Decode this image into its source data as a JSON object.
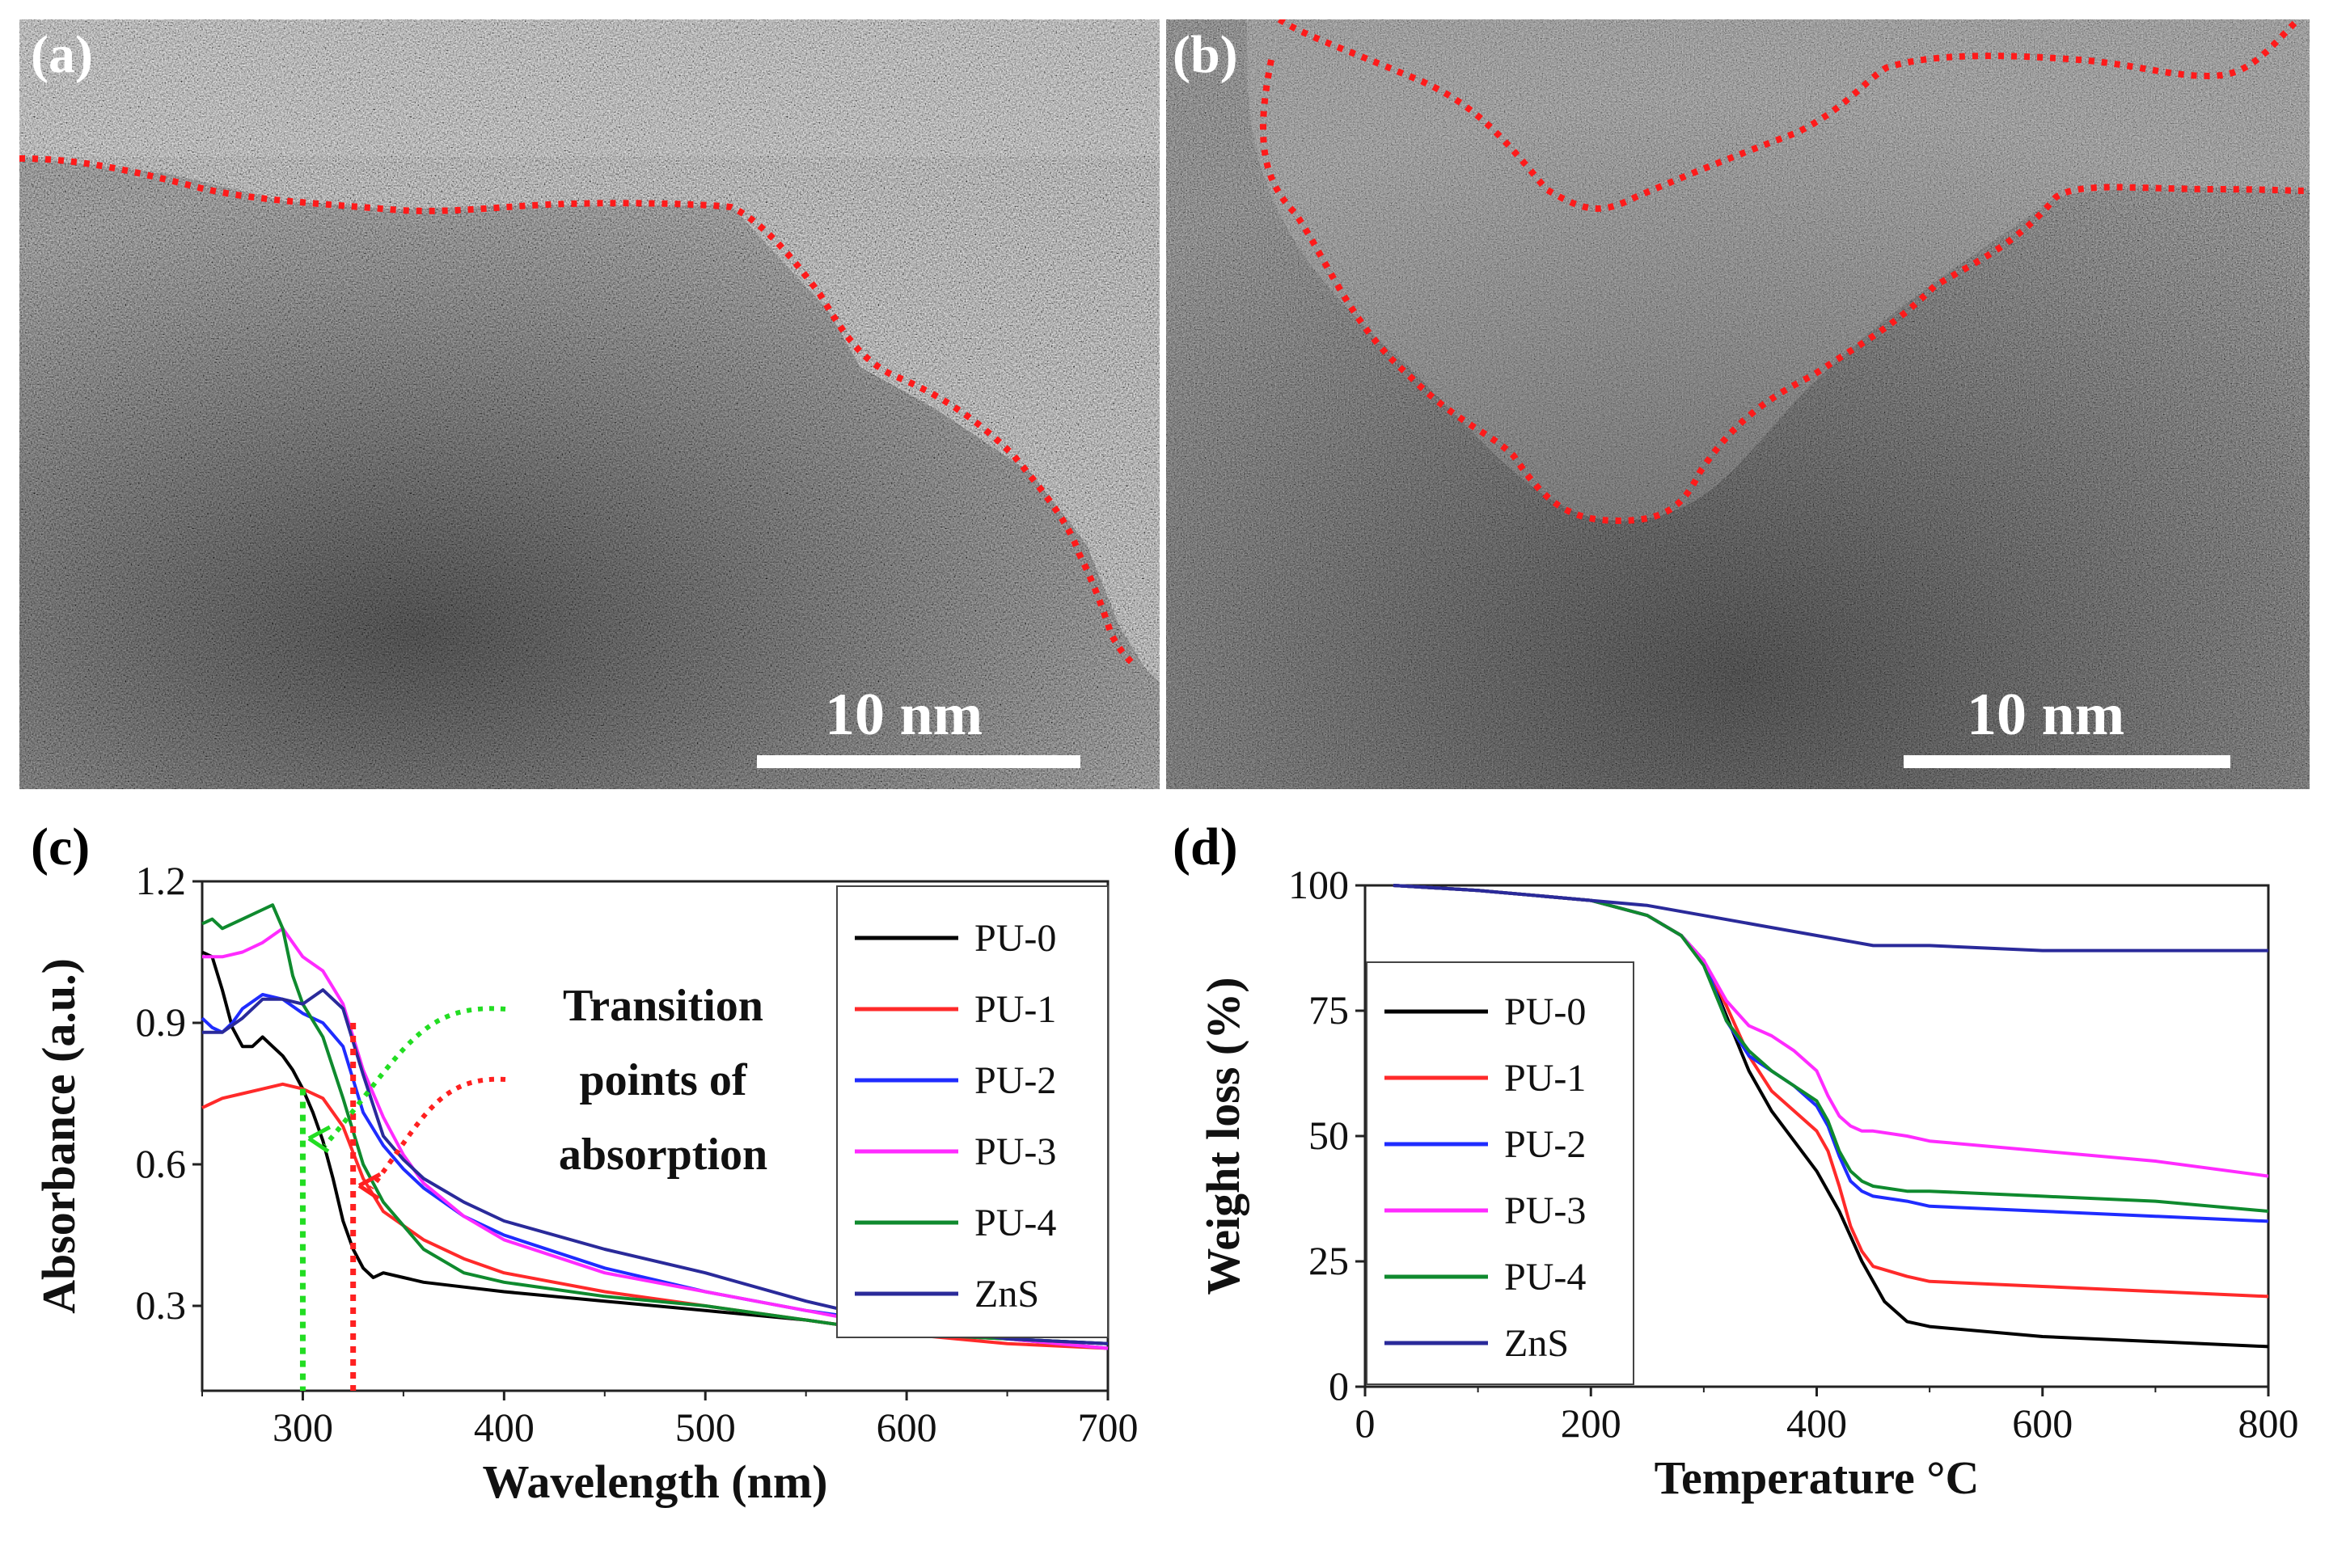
{
  "figure": {
    "panels": [
      {
        "label": "(a)",
        "kind": "TEM micrograph",
        "scale_bar": "10 nm"
      },
      {
        "label": "(b)",
        "kind": "TEM micrograph",
        "scale_bar": "10 nm"
      },
      {
        "label": "(c)"
      },
      {
        "label": "(d)"
      }
    ]
  },
  "colors": {
    "PU-0": "#000000",
    "PU-1": "#ff2a2a",
    "PU-2": "#1f2cff",
    "PU-3": "#ff2bff",
    "PU-4": "#0f8a2e",
    "ZnS": "#2a2a9a",
    "boundary": "#ff1a1a",
    "green_marker": "#22dd22",
    "red_marker": "#ff2020"
  },
  "chart_data": [
    {
      "type": "line",
      "panel": "(c)",
      "xlabel": "Wavelength (nm)",
      "ylabel": "Absorbance (a.u.)",
      "xlim": [
        250,
        700
      ],
      "ylim": [
        0.12,
        1.2
      ],
      "xticks": [
        300,
        400,
        500,
        600,
        700
      ],
      "yticks": [
        0.3,
        0.6,
        0.9,
        1.2
      ],
      "legend": "right",
      "annotation": [
        "Transition",
        "points of",
        "absorption"
      ],
      "markers": [
        {
          "series": "green",
          "x": 300,
          "y_top": 0.76
        },
        {
          "series": "red",
          "x": 325,
          "y_top": 0.9
        }
      ],
      "series": [
        {
          "name": "PU-0",
          "x": [
            250,
            255,
            260,
            265,
            270,
            275,
            280,
            285,
            290,
            295,
            300,
            305,
            310,
            315,
            320,
            325,
            330,
            335,
            340,
            350,
            360,
            380,
            400,
            450,
            500,
            550,
            600,
            650,
            700
          ],
          "y": [
            1.05,
            1.04,
            0.97,
            0.89,
            0.85,
            0.85,
            0.87,
            0.85,
            0.83,
            0.8,
            0.76,
            0.71,
            0.65,
            0.57,
            0.48,
            0.42,
            0.38,
            0.36,
            0.37,
            0.36,
            0.35,
            0.34,
            0.33,
            0.31,
            0.29,
            0.27,
            0.24,
            0.23,
            0.22
          ]
        },
        {
          "name": "PU-1",
          "x": [
            250,
            260,
            270,
            280,
            290,
            300,
            310,
            320,
            330,
            340,
            350,
            360,
            380,
            400,
            450,
            500,
            550,
            600,
            650,
            700
          ],
          "y": [
            0.72,
            0.74,
            0.75,
            0.76,
            0.77,
            0.76,
            0.74,
            0.68,
            0.57,
            0.5,
            0.47,
            0.44,
            0.4,
            0.37,
            0.33,
            0.3,
            0.27,
            0.24,
            0.22,
            0.21
          ]
        },
        {
          "name": "PU-2",
          "x": [
            250,
            255,
            260,
            265,
            270,
            280,
            290,
            300,
            310,
            320,
            330,
            340,
            350,
            360,
            380,
            400,
            450,
            500,
            550,
            600,
            650,
            700
          ],
          "y": [
            0.91,
            0.89,
            0.88,
            0.9,
            0.93,
            0.96,
            0.95,
            0.92,
            0.9,
            0.85,
            0.71,
            0.64,
            0.59,
            0.55,
            0.49,
            0.45,
            0.38,
            0.33,
            0.29,
            0.26,
            0.23,
            0.21
          ]
        },
        {
          "name": "PU-3",
          "x": [
            250,
            260,
            270,
            280,
            290,
            295,
            300,
            310,
            320,
            330,
            340,
            350,
            360,
            380,
            400,
            450,
            500,
            550,
            600,
            650,
            700
          ],
          "y": [
            1.04,
            1.04,
            1.05,
            1.07,
            1.1,
            1.07,
            1.04,
            1.01,
            0.94,
            0.8,
            0.7,
            0.62,
            0.56,
            0.49,
            0.44,
            0.37,
            0.33,
            0.29,
            0.25,
            0.23,
            0.21
          ]
        },
        {
          "name": "PU-4",
          "x": [
            250,
            255,
            260,
            270,
            280,
            285,
            290,
            295,
            300,
            310,
            320,
            330,
            340,
            350,
            360,
            380,
            400,
            450,
            500,
            550,
            600,
            650,
            700
          ],
          "y": [
            1.11,
            1.12,
            1.1,
            1.12,
            1.14,
            1.15,
            1.1,
            1.0,
            0.94,
            0.87,
            0.74,
            0.6,
            0.52,
            0.47,
            0.42,
            0.37,
            0.35,
            0.32,
            0.3,
            0.27,
            0.24,
            0.23,
            0.22
          ]
        },
        {
          "name": "ZnS",
          "x": [
            250,
            260,
            270,
            280,
            290,
            300,
            310,
            320,
            330,
            340,
            350,
            360,
            380,
            400,
            450,
            500,
            550,
            600,
            650,
            700
          ],
          "y": [
            0.88,
            0.88,
            0.91,
            0.95,
            0.95,
            0.94,
            0.97,
            0.93,
            0.79,
            0.66,
            0.61,
            0.57,
            0.52,
            0.48,
            0.42,
            0.37,
            0.31,
            0.26,
            0.23,
            0.22
          ]
        }
      ]
    },
    {
      "type": "line",
      "panel": "(d)",
      "xlabel": "Temperature °C",
      "ylabel": "Weight loss (%)",
      "xlim": [
        0,
        800
      ],
      "ylim": [
        0,
        100
      ],
      "xticks": [
        0,
        200,
        400,
        600,
        800
      ],
      "yticks": [
        0,
        25,
        50,
        75,
        100
      ],
      "legend": "left",
      "series": [
        {
          "name": "PU-0",
          "x": [
            25,
            100,
            200,
            250,
            280,
            300,
            320,
            340,
            360,
            380,
            400,
            420,
            440,
            460,
            480,
            500,
            600,
            700,
            800
          ],
          "y": [
            100,
            99,
            97,
            94,
            90,
            85,
            74,
            63,
            55,
            49,
            43,
            35,
            25,
            17,
            13,
            12,
            10,
            9,
            8
          ]
        },
        {
          "name": "PU-1",
          "x": [
            25,
            100,
            200,
            250,
            280,
            300,
            320,
            340,
            360,
            380,
            400,
            410,
            420,
            430,
            440,
            450,
            480,
            500,
            600,
            700,
            800
          ],
          "y": [
            100,
            99,
            97,
            94,
            90,
            85,
            76,
            66,
            59,
            55,
            51,
            47,
            40,
            32,
            27,
            24,
            22,
            21,
            20,
            19,
            18
          ]
        },
        {
          "name": "PU-2",
          "x": [
            25,
            100,
            200,
            250,
            280,
            300,
            320,
            340,
            360,
            380,
            400,
            410,
            420,
            430,
            440,
            450,
            480,
            500,
            600,
            700,
            800
          ],
          "y": [
            100,
            99,
            97,
            94,
            90,
            85,
            73,
            66,
            63,
            60,
            56,
            52,
            46,
            41,
            39,
            38,
            37,
            36,
            35,
            34,
            33
          ]
        },
        {
          "name": "PU-3",
          "x": [
            25,
            100,
            200,
            250,
            280,
            300,
            320,
            340,
            360,
            380,
            400,
            410,
            420,
            430,
            440,
            450,
            480,
            500,
            600,
            700,
            800
          ],
          "y": [
            100,
            99,
            97,
            94,
            90,
            85,
            77,
            72,
            70,
            67,
            63,
            58,
            54,
            52,
            51,
            51,
            50,
            49,
            47,
            45,
            42
          ]
        },
        {
          "name": "PU-4",
          "x": [
            25,
            100,
            200,
            250,
            280,
            300,
            320,
            340,
            360,
            380,
            400,
            410,
            420,
            430,
            440,
            450,
            480,
            500,
            600,
            700,
            800
          ],
          "y": [
            100,
            99,
            97,
            94,
            90,
            84,
            73,
            67,
            63,
            60,
            57,
            53,
            47,
            43,
            41,
            40,
            39,
            39,
            38,
            37,
            35
          ]
        },
        {
          "name": "ZnS",
          "x": [
            25,
            100,
            200,
            250,
            300,
            350,
            400,
            450,
            500,
            600,
            700,
            800
          ],
          "y": [
            100,
            99,
            97,
            96,
            94,
            92,
            90,
            88,
            88,
            87,
            87,
            87
          ]
        }
      ]
    }
  ]
}
